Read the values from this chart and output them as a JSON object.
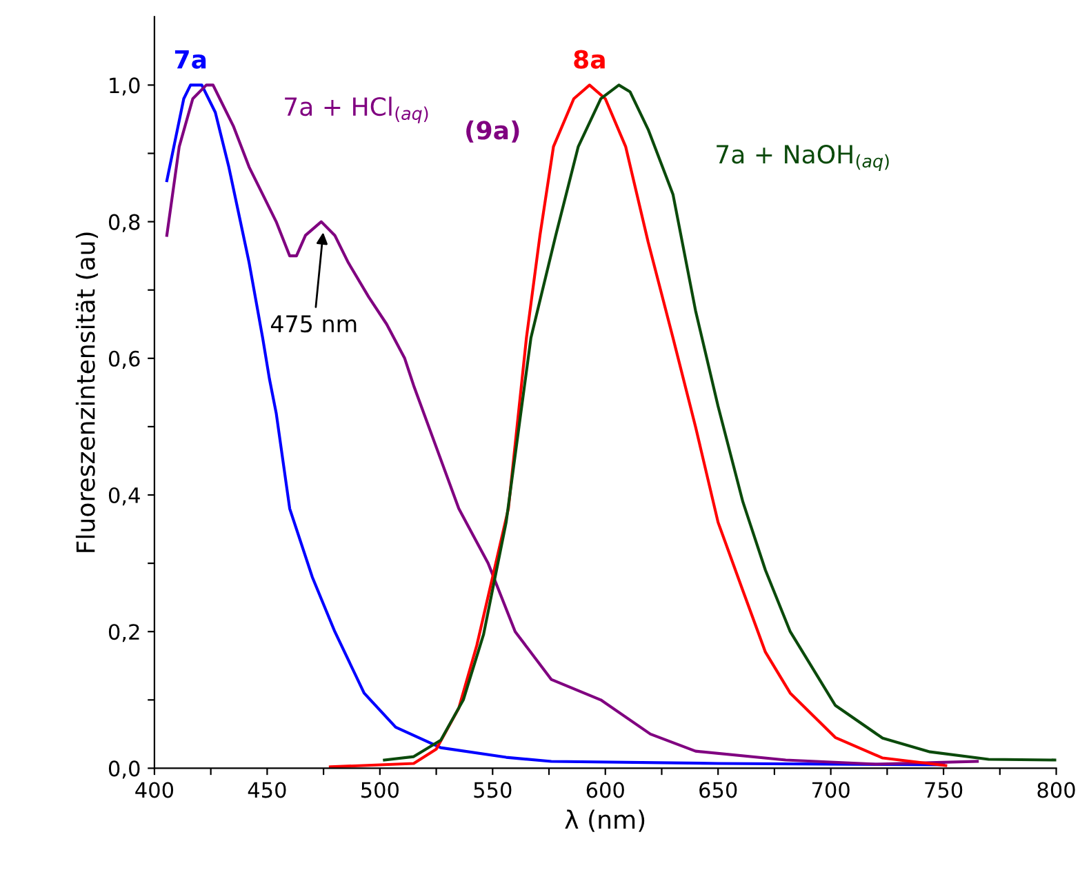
{
  "chart_data": {
    "type": "line",
    "xlabel": "λ (nm)",
    "ylabel": "Fluoreszenzintensität (au)",
    "xlim": [
      400,
      800
    ],
    "ylim": [
      0,
      1.1
    ],
    "xticks": [
      400,
      {
        "value": 425,
        "label": null
      },
      450,
      {
        "value": 475,
        "label": null
      },
      500,
      {
        "value": 525,
        "label": null
      },
      550,
      {
        "value": 575,
        "label": null
      },
      600,
      {
        "value": 625,
        "label": null
      },
      650,
      {
        "value": 675,
        "label": null
      },
      700,
      {
        "value": 725,
        "label": null
      },
      750,
      {
        "value": 775,
        "label": null
      },
      800
    ],
    "yticks": [
      {
        "value": 0,
        "label": "0,0"
      },
      {
        "value": 0.1,
        "label": null
      },
      {
        "value": 0.2,
        "label": "0,2"
      },
      {
        "value": 0.3,
        "label": null
      },
      {
        "value": 0.4,
        "label": "0,4"
      },
      {
        "value": 0.5,
        "label": null
      },
      {
        "value": 0.6,
        "label": "0,6"
      },
      {
        "value": 0.7,
        "label": null
      },
      {
        "value": 0.8,
        "label": "0,8"
      },
      {
        "value": 0.9,
        "label": null
      },
      {
        "value": 1.0,
        "label": "1,0"
      }
    ],
    "grid": false,
    "legend": false,
    "marker": "none",
    "line_style": "solid",
    "series": [
      {
        "name": "7a",
        "color": "#0000ff",
        "x": [
          405.5,
          413,
          416,
          421,
          427,
          433,
          442,
          448,
          451,
          454,
          460,
          470,
          480,
          493,
          507,
          527,
          556,
          576,
          650,
          750
        ],
        "values": [
          0.86,
          0.98,
          1.0,
          1.0,
          0.96,
          0.88,
          0.74,
          0.63,
          0.57,
          0.52,
          0.38,
          0.28,
          0.2,
          0.11,
          0.06,
          0.03,
          0.016,
          0.01,
          0.007,
          0.005
        ]
      },
      {
        "name": "7a + HCl$_{(aq)}$",
        "color": "#800080",
        "x": [
          405.5,
          411,
          417,
          423,
          426,
          429,
          435,
          442,
          448,
          454,
          460,
          463,
          467,
          474,
          480,
          486,
          495,
          503,
          511,
          515,
          525,
          535,
          548,
          560,
          576,
          598,
          620,
          640,
          680,
          720,
          765
        ],
        "values": [
          0.78,
          0.91,
          0.98,
          1.0,
          1.0,
          0.98,
          0.94,
          0.88,
          0.84,
          0.8,
          0.75,
          0.75,
          0.78,
          0.8,
          0.78,
          0.74,
          0.69,
          0.65,
          0.6,
          0.56,
          0.47,
          0.38,
          0.3,
          0.2,
          0.13,
          0.1,
          0.05,
          0.025,
          0.012,
          0.006,
          0.01
        ]
      },
      {
        "name": "8a",
        "color": "#ff0000",
        "x": [
          478,
          515,
          525,
          535,
          543,
          550,
          557,
          565,
          571,
          577,
          586,
          593,
          600,
          609,
          619,
          630,
          640,
          650,
          661,
          671,
          682,
          702,
          723,
          751
        ],
        "values": [
          0.002,
          0.007,
          0.028,
          0.088,
          0.18,
          0.28,
          0.38,
          0.63,
          0.78,
          0.91,
          0.98,
          1.0,
          0.98,
          0.91,
          0.77,
          0.63,
          0.5,
          0.36,
          0.26,
          0.17,
          0.11,
          0.045,
          0.015,
          0.004
        ]
      },
      {
        "name": "7a + NaOH$_{(aq)}$",
        "color": "#0b4a0b",
        "x": [
          502,
          515,
          527,
          537,
          546,
          556,
          567,
          578,
          588,
          598,
          606,
          611,
          619,
          630,
          640,
          650,
          661,
          671,
          682,
          702,
          723,
          744,
          770,
          800
        ],
        "values": [
          0.012,
          0.017,
          0.041,
          0.1,
          0.196,
          0.36,
          0.63,
          0.78,
          0.91,
          0.98,
          1.0,
          0.99,
          0.935,
          0.84,
          0.67,
          0.53,
          0.39,
          0.29,
          0.2,
          0.092,
          0.044,
          0.024,
          0.013,
          0.012
        ]
      }
    ],
    "annotations": [
      "(9a)",
      {
        "text": "475 nm",
        "x": 475,
        "y": 0.79
      }
    ]
  }
}
